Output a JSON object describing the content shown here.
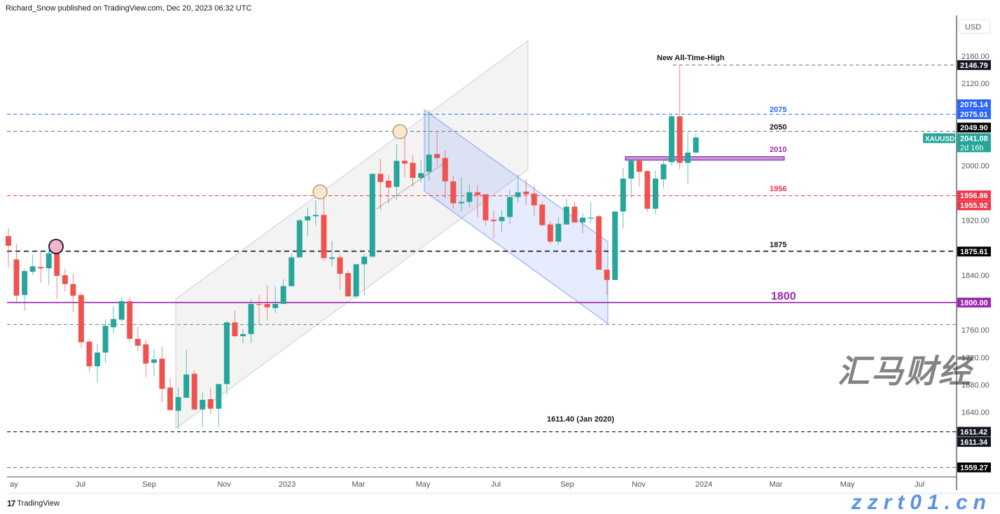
{
  "header": {
    "text": "Richard_Snow published on TradingView.com, Dec 20, 2023 06:32 UTC"
  },
  "footer": {
    "logo_text": "TradingView",
    "watermark": "zzrt01.cn",
    "watermark_cn": "汇马财经"
  },
  "colors": {
    "up": "#26a69a",
    "down": "#ef5350",
    "blue": "#2962ff",
    "red_line": "#f23645",
    "purple": "#9c27b0",
    "grey": "#787b86",
    "black": "#131722"
  },
  "chart_data": {
    "type": "candlestick",
    "symbol": "XAUUSD",
    "currency": "USD",
    "timeframe_countdown": "2d 16h",
    "last_price": "2041.08",
    "ylim": [
      1545,
      2185
    ],
    "y_ticks": [
      "2160.00",
      "2120.00",
      "2000.00",
      "1920.00",
      "1840.00",
      "1760.00",
      "1720.00",
      "1680.00",
      "1640.00"
    ],
    "x_ticks": [
      "ay",
      "Jul",
      "Sep",
      "Nov",
      "2023",
      "Mar",
      "May",
      "Jul",
      "Sep",
      "Nov",
      "2024",
      "Mar",
      "May",
      "Jul"
    ],
    "candles_ohlc": [
      [
        1897,
        1909,
        1851,
        1883
      ],
      [
        1863,
        1886,
        1800,
        1810
      ],
      [
        1811,
        1849,
        1788,
        1846
      ],
      [
        1845,
        1870,
        1841,
        1853
      ],
      [
        1852,
        1874,
        1829,
        1850
      ],
      [
        1850,
        1877,
        1826,
        1872
      ],
      [
        1872,
        1881,
        1805,
        1839
      ],
      [
        1840,
        1849,
        1816,
        1827
      ],
      [
        1827,
        1842,
        1786,
        1810
      ],
      [
        1811,
        1814,
        1734,
        1742
      ],
      [
        1743,
        1746,
        1699,
        1707
      ],
      [
        1707,
        1740,
        1683,
        1727
      ],
      [
        1727,
        1776,
        1712,
        1766
      ],
      [
        1764,
        1795,
        1755,
        1776
      ],
      [
        1775,
        1808,
        1772,
        1802
      ],
      [
        1802,
        1808,
        1742,
        1747
      ],
      [
        1747,
        1765,
        1729,
        1737
      ],
      [
        1739,
        1746,
        1691,
        1711
      ],
      [
        1712,
        1731,
        1693,
        1717
      ],
      [
        1718,
        1736,
        1655,
        1674
      ],
      [
        1676,
        1690,
        1643,
        1643
      ],
      [
        1642,
        1676,
        1616,
        1662
      ],
      [
        1661,
        1731,
        1661,
        1695
      ],
      [
        1696,
        1701,
        1643,
        1644
      ],
      [
        1644,
        1669,
        1618,
        1658
      ],
      [
        1659,
        1676,
        1638,
        1645
      ],
      [
        1645,
        1681,
        1618,
        1681
      ],
      [
        1681,
        1773,
        1666,
        1771
      ],
      [
        1771,
        1788,
        1749,
        1751
      ],
      [
        1751,
        1761,
        1741,
        1754
      ],
      [
        1754,
        1805,
        1741,
        1798
      ],
      [
        1798,
        1811,
        1767,
        1797
      ],
      [
        1798,
        1825,
        1774,
        1793
      ],
      [
        1792,
        1824,
        1785,
        1798
      ],
      [
        1798,
        1834,
        1798,
        1824
      ],
      [
        1824,
        1871,
        1824,
        1866
      ],
      [
        1866,
        1923,
        1866,
        1920
      ],
      [
        1920,
        1938,
        1897,
        1926
      ],
      [
        1926,
        1949,
        1912,
        1928
      ],
      [
        1928,
        1961,
        1861,
        1865
      ],
      [
        1864,
        1890,
        1853,
        1866
      ],
      [
        1866,
        1871,
        1819,
        1842
      ],
      [
        1843,
        1847,
        1809,
        1809
      ],
      [
        1809,
        1856,
        1806,
        1856
      ],
      [
        1856,
        1871,
        1810,
        1867
      ],
      [
        1867,
        1988,
        1867,
        1988
      ],
      [
        1988,
        2010,
        1935,
        1976
      ],
      [
        1978,
        1987,
        1945,
        1968
      ],
      [
        1969,
        2031,
        1950,
        2007
      ],
      [
        2007,
        2048,
        1983,
        2003
      ],
      [
        2004,
        2015,
        1970,
        1982
      ],
      [
        1982,
        2009,
        1975,
        1989
      ],
      [
        1991,
        2081,
        1978,
        2016
      ],
      [
        2017,
        2050,
        2000,
        2011
      ],
      [
        2011,
        2022,
        1952,
        1977
      ],
      [
        1977,
        1985,
        1937,
        1945
      ],
      [
        1945,
        1983,
        1933,
        1947
      ],
      [
        1947,
        1972,
        1939,
        1961
      ],
      [
        1961,
        1971,
        1925,
        1957
      ],
      [
        1958,
        1958,
        1912,
        1920
      ],
      [
        1921,
        1934,
        1893,
        1919
      ],
      [
        1919,
        1935,
        1903,
        1925
      ],
      [
        1925,
        1964,
        1914,
        1954
      ],
      [
        1954,
        1987,
        1946,
        1961
      ],
      [
        1962,
        1981,
        1942,
        1958
      ],
      [
        1959,
        1971,
        1927,
        1942
      ],
      [
        1943,
        1947,
        1913,
        1913
      ],
      [
        1914,
        1919,
        1885,
        1889
      ],
      [
        1889,
        1924,
        1885,
        1915
      ],
      [
        1914,
        1952,
        1914,
        1940
      ],
      [
        1940,
        1947,
        1917,
        1917
      ],
      [
        1917,
        1931,
        1901,
        1924
      ],
      [
        1923,
        1947,
        1916,
        1924
      ],
      [
        1926,
        1928,
        1848,
        1848
      ],
      [
        1848,
        1848,
        1811,
        1833
      ],
      [
        1833,
        1933,
        1833,
        1933
      ],
      [
        1933,
        1997,
        1908,
        1981
      ],
      [
        1981,
        2009,
        1953,
        2007
      ],
      [
        2007,
        2007,
        1970,
        1991
      ],
      [
        1992,
        1993,
        1933,
        1937
      ],
      [
        1937,
        1993,
        1929,
        1981
      ],
      [
        1980,
        2008,
        1967,
        2002
      ],
      [
        2005,
        2075,
        2000,
        2072
      ],
      [
        2072,
        2147,
        1995,
        2004
      ],
      [
        2004,
        2048,
        1973,
        2019
      ],
      [
        2019,
        2047,
        2019,
        2041.08
      ]
    ],
    "levels": [
      {
        "price": 2146.79,
        "label": "New All-Time-High",
        "style": "dashed",
        "color": "#787b86"
      },
      {
        "price": 2075,
        "label": "2075",
        "style": "dashed",
        "color": "#2962ff"
      },
      {
        "price": 2050,
        "label": "2050",
        "style": "dashed",
        "color": "#787b86"
      },
      {
        "price": 2010,
        "label": "2010",
        "style": "zone",
        "color": "#9c27b0"
      },
      {
        "price": 1956,
        "label": "1956",
        "style": "dashed",
        "color": "#f23645"
      },
      {
        "price": 1875,
        "label": "1875",
        "style": "dashed",
        "color": "#131722"
      },
      {
        "price": 1800,
        "label": "1800",
        "style": "solid",
        "color": "#9c27b0"
      },
      {
        "price": 1768,
        "label": "",
        "style": "dashed",
        "color": "#787b86"
      },
      {
        "price": 1611.4,
        "label": "1611.40 (Jan 2020)",
        "style": "dashed",
        "color": "#131722"
      },
      {
        "price": 1559.27,
        "label": "",
        "style": "dashed",
        "color": "#787b86"
      }
    ],
    "price_badges": [
      {
        "text": "2146.79",
        "price": 2146.79,
        "color": "#131722"
      },
      {
        "text": "2075.14",
        "price": 2089.5,
        "color": "#2962ff"
      },
      {
        "text": "2075.01",
        "price": 2075,
        "color": "#2962ff"
      },
      {
        "text": "2049.90",
        "price": 2055.5,
        "color": "#000000"
      },
      {
        "text": "2041.08",
        "price": 2040,
        "color": "#26a69a",
        "sub": "2d 16h"
      },
      {
        "text": "1956.86",
        "price": 1956.5,
        "color": "#f23645"
      },
      {
        "text": "1955.92",
        "price": 1942,
        "color": "#f23645"
      },
      {
        "text": "1875.61",
        "price": 1874.5,
        "color": "#000000"
      },
      {
        "text": "1800.00",
        "price": 1800,
        "color": "#9c27b0"
      },
      {
        "text": "1611.42",
        "price": 1611.4,
        "color": "#131722"
      },
      {
        "text": "1611.34",
        "price": 1596.5,
        "color": "#131722"
      },
      {
        "text": "1559.27",
        "price": 1559.3,
        "color": "#000000"
      }
    ]
  }
}
